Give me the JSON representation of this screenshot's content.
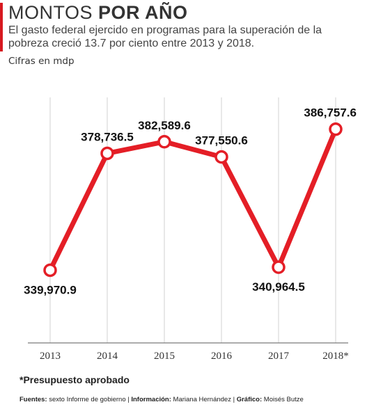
{
  "header": {
    "title_light": "MONTOS",
    "title_bold": "POR AÑO",
    "subtitle": "El gasto federal ejercido en programas para la superación de la pobreza creció 13.7 por ciento entre 2013 y 2018.",
    "units": "Cifras en mdp"
  },
  "chart_data": {
    "type": "line",
    "categories": [
      "2013",
      "2014",
      "2015",
      "2016",
      "2017",
      "2018*"
    ],
    "values": [
      339970.9,
      378736.5,
      382589.6,
      377550.6,
      340964.5,
      386757.6
    ],
    "data_labels": [
      "339,970.9",
      "378,736.5",
      "382,589.6",
      "377,550.6",
      "340,964.5",
      "386,757.6"
    ],
    "ylim": [
      320000,
      395000
    ],
    "grid": "vertical",
    "line_color": "#e41e26",
    "marker_fill": "#ffffff"
  },
  "footer": {
    "note": "*Presupuesto aprobado",
    "sources_label": "Fuentes:",
    "sources_value": "sexto Informe de gobierno",
    "info_label": "Información:",
    "info_value": "Mariana Hernández",
    "graphic_label": "Gráfico:",
    "graphic_value": "Moisés Butze"
  }
}
